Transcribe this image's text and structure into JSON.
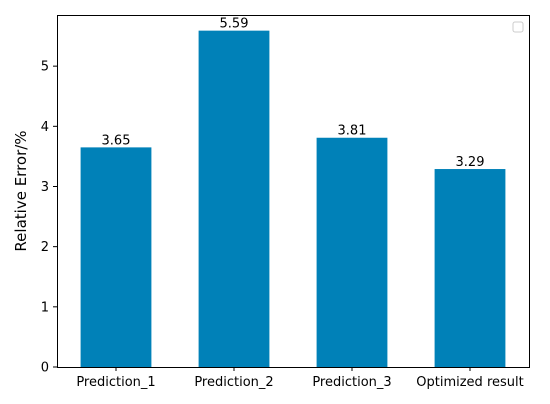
{
  "chart_data": {
    "type": "bar",
    "categories": [
      "Prediction_1",
      "Prediction_2",
      "Prediction_3",
      "Optimized result"
    ],
    "values": [
      3.65,
      5.59,
      3.81,
      3.29
    ],
    "data_labels": [
      "3.65",
      "5.59",
      "3.81",
      "3.29"
    ],
    "title": "",
    "xlabel": "",
    "ylabel": "Relative Error/%",
    "ylim": [
      0,
      5.85
    ],
    "yticks": [
      0,
      1,
      2,
      3,
      4,
      5
    ],
    "ytick_labels": [
      "0",
      "1",
      "2",
      "3",
      "4",
      "5"
    ],
    "grid": false,
    "legend_position": "top-right",
    "bar_color": "#0081b8"
  }
}
